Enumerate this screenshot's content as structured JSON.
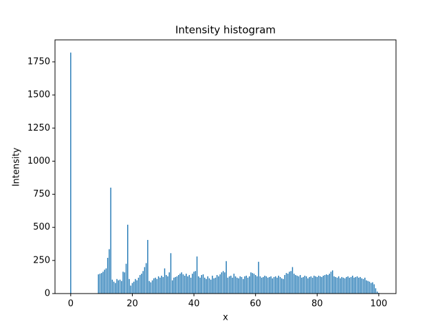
{
  "chart_data": {
    "type": "bar",
    "title": "Intensity histogram",
    "xlabel": "x",
    "ylabel": "Intensity",
    "color": "#1f77b4",
    "x": [
      0,
      9,
      9.5,
      10,
      10.5,
      11,
      11.5,
      12,
      12.5,
      13,
      13.5,
      14,
      14.5,
      15,
      15.5,
      16,
      16.5,
      17,
      17.5,
      18,
      18.5,
      19,
      19.5,
      20,
      20.5,
      21,
      21.5,
      22,
      22.5,
      23,
      23.5,
      24,
      24.5,
      25,
      25.5,
      26,
      26.5,
      27,
      27.5,
      28,
      28.5,
      29,
      29.5,
      30,
      30.5,
      31,
      31.5,
      32,
      32.5,
      33,
      33.5,
      34,
      34.5,
      35,
      35.5,
      36,
      36.5,
      37,
      37.5,
      38,
      38.5,
      39,
      39.5,
      40,
      40.5,
      41,
      41.5,
      42,
      42.5,
      43,
      43.5,
      44,
      44.5,
      45,
      45.5,
      46,
      46.5,
      47,
      47.5,
      48,
      48.5,
      49,
      49.5,
      50,
      50.5,
      51,
      51.5,
      52,
      52.5,
      53,
      53.5,
      54,
      54.5,
      55,
      55.5,
      56,
      56.5,
      57,
      57.5,
      58,
      58.5,
      59,
      59.5,
      60,
      60.5,
      61,
      61.5,
      62,
      62.5,
      63,
      63.5,
      64,
      64.5,
      65,
      65.5,
      66,
      66.5,
      67,
      67.5,
      68,
      68.5,
      69,
      69.5,
      70,
      70.5,
      71,
      71.5,
      72,
      72.5,
      73,
      73.5,
      74,
      74.5,
      75,
      75.5,
      76,
      76.5,
      77,
      77.5,
      78,
      78.5,
      79,
      79.5,
      80,
      80.5,
      81,
      81.5,
      82,
      82.5,
      83,
      83.5,
      84,
      84.5,
      85,
      85.5,
      86,
      86.5,
      87,
      87.5,
      88,
      88.5,
      89,
      89.5,
      90,
      90.5,
      91,
      91.5,
      92,
      92.5,
      93,
      93.5,
      94,
      94.5,
      95,
      95.5,
      96,
      96.5,
      97,
      97.5,
      98,
      98.5,
      99,
      99.5,
      100
    ],
    "values": [
      1820,
      145,
      150,
      155,
      165,
      180,
      190,
      270,
      335,
      800,
      105,
      90,
      80,
      110,
      100,
      105,
      95,
      165,
      160,
      225,
      520,
      110,
      60,
      80,
      90,
      110,
      100,
      120,
      140,
      150,
      170,
      200,
      230,
      405,
      95,
      85,
      100,
      115,
      120,
      110,
      130,
      120,
      135,
      125,
      190,
      140,
      130,
      160,
      305,
      100,
      120,
      125,
      130,
      140,
      150,
      160,
      145,
      135,
      150,
      130,
      140,
      120,
      150,
      165,
      170,
      280,
      130,
      120,
      140,
      145,
      120,
      110,
      130,
      115,
      105,
      135,
      115,
      120,
      140,
      130,
      145,
      160,
      170,
      160,
      245,
      120,
      130,
      135,
      120,
      150,
      130,
      120,
      115,
      130,
      125,
      110,
      130,
      135,
      120,
      130,
      160,
      155,
      150,
      140,
      130,
      240,
      130,
      120,
      125,
      135,
      130,
      120,
      125,
      130,
      115,
      125,
      130,
      120,
      135,
      125,
      115,
      110,
      140,
      155,
      150,
      165,
      170,
      200,
      150,
      140,
      135,
      130,
      140,
      120,
      125,
      135,
      130,
      115,
      125,
      130,
      120,
      135,
      130,
      125,
      135,
      130,
      125,
      135,
      140,
      145,
      140,
      150,
      165,
      175,
      130,
      125,
      120,
      130,
      115,
      125,
      120,
      115,
      125,
      130,
      120,
      125,
      135,
      120,
      125,
      130,
      120,
      125,
      115,
      110,
      120,
      100,
      95,
      90,
      80,
      85,
      70,
      40,
      15,
      5
    ],
    "xlim": [
      -5.1,
      105.6
    ],
    "ylim": [
      0,
      1916
    ],
    "xticks": [
      0,
      20,
      40,
      60,
      80,
      100
    ],
    "yticks": [
      0,
      250,
      500,
      750,
      1000,
      1250,
      1500,
      1750
    ]
  }
}
